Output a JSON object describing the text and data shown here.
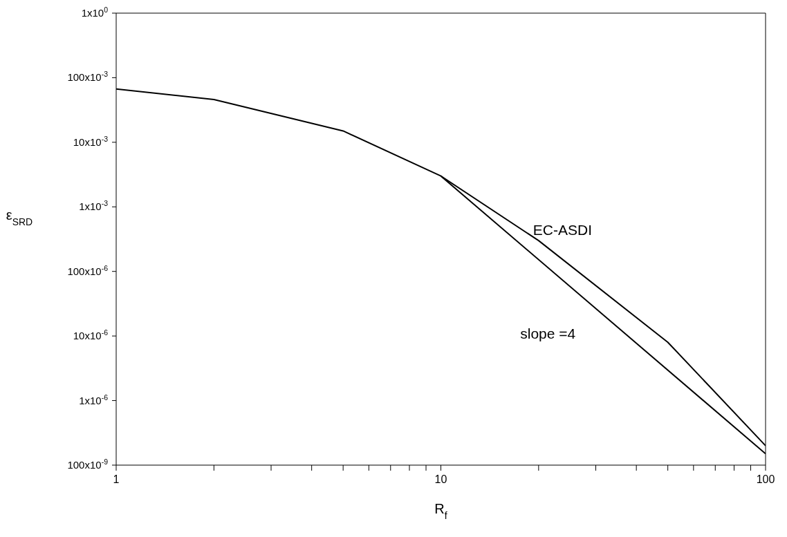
{
  "chart_data": {
    "type": "line",
    "xlabel": "R$_{f}$",
    "ylabel": "ε$_{SRD}$",
    "log": "xy",
    "marker": "none",
    "line_style": "solid",
    "xlim": [
      1,
      100
    ],
    "ylim": [
      1e-07,
      1
    ],
    "xticks": [
      1,
      {
        "value": 2,
        "label": null
      },
      {
        "value": 3,
        "label": null
      },
      {
        "value": 4,
        "label": null
      },
      {
        "value": 5,
        "label": null
      },
      {
        "value": 6,
        "label": null
      },
      {
        "value": 7,
        "label": null
      },
      {
        "value": 8,
        "label": null
      },
      {
        "value": 9,
        "label": null
      },
      10,
      {
        "value": 20,
        "label": null
      },
      {
        "value": 30,
        "label": null
      },
      {
        "value": 40,
        "label": null
      },
      {
        "value": 50,
        "label": null
      },
      {
        "value": 60,
        "label": null
      },
      {
        "value": 70,
        "label": null
      },
      {
        "value": 80,
        "label": null
      },
      {
        "value": 90,
        "label": null
      },
      100
    ],
    "yticks": [
      {
        "value": 1e-07,
        "label": "100x10$^{-9}$"
      },
      {
        "value": 1e-06,
        "label": "1x10$^{-6}$"
      },
      {
        "value": 1e-05,
        "label": "10x10$^{-6}$"
      },
      {
        "value": 0.0001,
        "label": "100x10$^{-6}$"
      },
      {
        "value": 0.001,
        "label": "1x10$^{-3}$"
      },
      {
        "value": 0.01,
        "label": "10x10$^{-3}$"
      },
      {
        "value": 0.1,
        "label": "100x10$^{-3}$"
      },
      {
        "value": 1,
        "label": "1x10$^{0}$"
      }
    ],
    "series": [
      {
        "name": "EC-ASDI",
        "color": "#000000",
        "x": [
          1,
          2,
          5,
          10,
          20,
          50,
          100
        ],
        "values": [
          0.067,
          0.046,
          0.015,
          0.003,
          0.0003,
          8e-06,
          2e-07
        ]
      },
      {
        "name": "slope =4",
        "color": "#000000",
        "x": [
          10,
          100
        ],
        "values": [
          0.003,
          1.5e-07
        ]
      }
    ]
  }
}
